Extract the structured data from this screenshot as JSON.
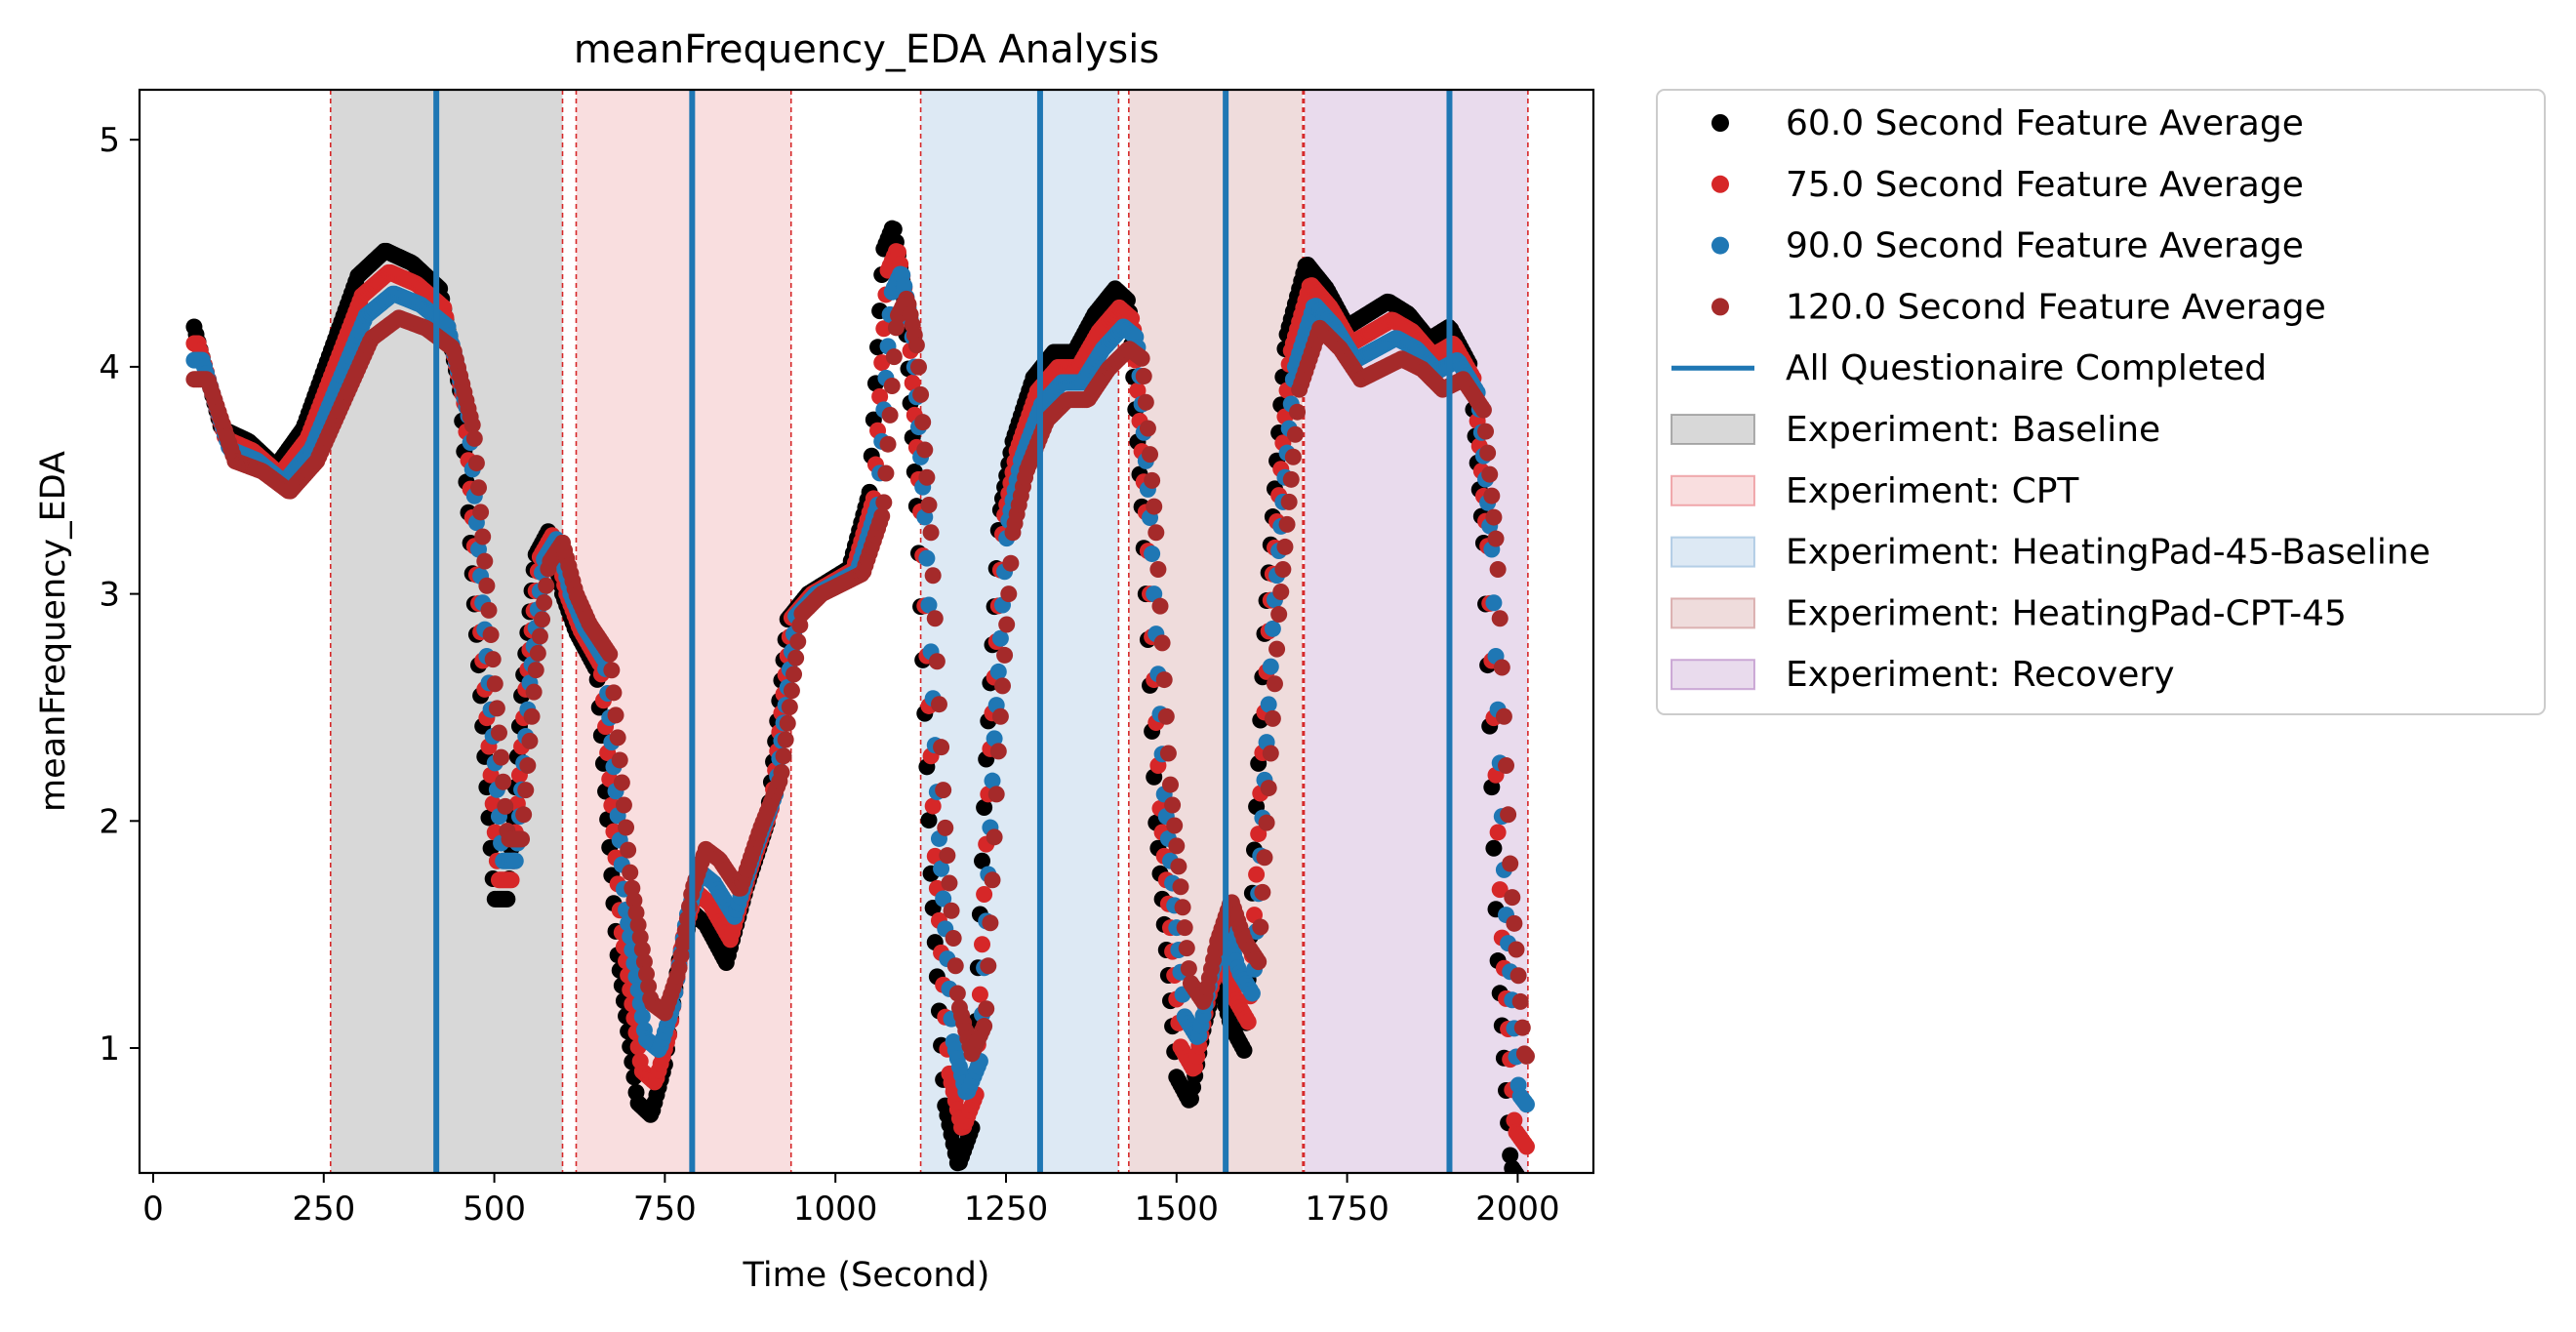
{
  "chart_data": {
    "type": "scatter",
    "title": "meanFrequency_EDA Analysis",
    "xlabel": "Time (Second)",
    "ylabel": "meanFrequency_EDA",
    "xlim": [
      -20,
      2111
    ],
    "ylim": [
      0.45,
      5.22
    ],
    "xticks": [
      0,
      250,
      500,
      750,
      1000,
      1250,
      1500,
      1750,
      2000
    ],
    "yticks": [
      1,
      2,
      3,
      4,
      5
    ],
    "grid": false,
    "legend_position": "outside-right",
    "phases": [
      {
        "name": "Experiment: Baseline",
        "start": 260,
        "end": 600,
        "color": "#7f7f7f",
        "opacity": 0.3
      },
      {
        "name": "Experiment: CPT",
        "start": 620,
        "end": 935,
        "color": "#e87a80",
        "opacity": 0.25
      },
      {
        "name": "Experiment: HeatingPad-45-Baseline",
        "start": 1125,
        "end": 1415,
        "color": "#8fb6d9",
        "opacity": 0.3
      },
      {
        "name": "Experiment: HeatingPad-CPT-45",
        "start": 1430,
        "end": 1685,
        "color": "#c98b8b",
        "opacity": 0.3
      },
      {
        "name": "Experiment: Recovery",
        "start": 1687,
        "end": 2015,
        "color": "#b07cbf",
        "opacity": 0.28
      }
    ],
    "questionnaire_lines": {
      "name": "All Questionaire Completed",
      "x": [
        415,
        790,
        1300,
        1572,
        1900
      ],
      "color": "#1f77b4"
    },
    "series": [
      {
        "name": "60.0 Second Feature Average",
        "color": "#000000",
        "lag": 0,
        "amp": 1.12
      },
      {
        "name": "75.0 Second Feature Average",
        "color": "#d62728",
        "lag": 6,
        "amp": 1.05
      },
      {
        "name": "90.0 Second Feature Average",
        "color": "#1f77b4",
        "lag": 12,
        "amp": 0.98
      },
      {
        "name": "120.0 Second Feature Average",
        "color": "#a52a2a",
        "lag": 20,
        "amp": 0.9
      }
    ],
    "base_curve": {
      "x": [
        60,
        100,
        140,
        180,
        220,
        260,
        300,
        340,
        380,
        420,
        450,
        480,
        500,
        520,
        540,
        560,
        580,
        600,
        620,
        650,
        680,
        710,
        730,
        750,
        770,
        790,
        810,
        840,
        870,
        900,
        930,
        960,
        990,
        1020,
        1050,
        1070,
        1085,
        1100,
        1120,
        1140,
        1160,
        1180,
        1200,
        1220,
        1240,
        1260,
        1290,
        1320,
        1350,
        1380,
        1410,
        1430,
        1450,
        1470,
        1500,
        1520,
        1540,
        1560,
        1580,
        1600,
        1630,
        1660,
        1690,
        1720,
        1750,
        1780,
        1810,
        1840,
        1870,
        1900,
        1930,
        1950,
        1970,
        1990,
        2015
      ],
      "y": [
        4.05,
        3.65,
        3.6,
        3.5,
        3.65,
        3.95,
        4.25,
        4.35,
        4.3,
        4.2,
        3.8,
        2.6,
        1.8,
        1.8,
        2.6,
        3.15,
        3.25,
        3.0,
        2.85,
        2.7,
        1.6,
        1.0,
        0.95,
        1.15,
        1.55,
        1.75,
        1.7,
        1.55,
        1.85,
        2.1,
        2.9,
        3.0,
        3.05,
        3.1,
        3.4,
        4.35,
        4.45,
        4.2,
        3.3,
        1.9,
        1.0,
        0.75,
        0.9,
        2.3,
        3.3,
        3.6,
        3.85,
        3.95,
        3.95,
        4.1,
        4.2,
        4.15,
        3.3,
        2.1,
        1.1,
        1.0,
        1.3,
        1.5,
        1.3,
        1.2,
        2.9,
        4.0,
        4.3,
        4.2,
        4.05,
        4.1,
        4.15,
        4.1,
        4.0,
        4.05,
        3.9,
        3.2,
        1.6,
        0.75,
        0.65
      ]
    }
  }
}
